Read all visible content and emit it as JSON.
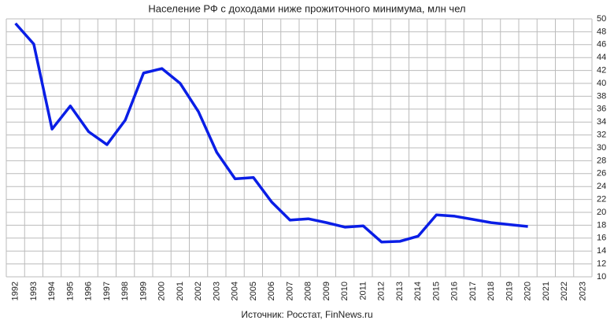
{
  "chart_data": {
    "type": "line",
    "title": "Население РФ с доходами ниже прожиточного минимума, млн чел",
    "source": "Источник: Росстат, FinNews.ru",
    "categories": [
      "1992",
      "1993",
      "1994",
      "1995",
      "1996",
      "1997",
      "1998",
      "1999",
      "2000",
      "2001",
      "2002",
      "2003",
      "2004",
      "2005",
      "2006",
      "2007",
      "2008",
      "2009",
      "2010",
      "2011",
      "2012",
      "2013",
      "2014",
      "2015",
      "2016",
      "2017",
      "2018",
      "2019",
      "2020",
      "2021",
      "2022",
      "2023"
    ],
    "series": [
      {
        "name": "Население с доходами ниже прожиточного минимума",
        "color": "#0a1ee6",
        "values": [
          49.3,
          46.1,
          32.9,
          36.5,
          32.5,
          30.5,
          34.3,
          41.6,
          42.3,
          40.0,
          35.6,
          29.3,
          25.2,
          25.4,
          21.6,
          18.8,
          19.0,
          18.4,
          17.7,
          17.9,
          15.4,
          15.5,
          16.3,
          19.6,
          19.4,
          18.9,
          18.4,
          18.1,
          17.8,
          null,
          null,
          null
        ]
      }
    ],
    "ylim": [
      10,
      50
    ],
    "yticks": [
      10,
      12,
      14,
      16,
      18,
      20,
      22,
      24,
      26,
      28,
      30,
      32,
      34,
      36,
      38,
      40,
      42,
      44,
      46,
      48,
      50
    ],
    "grid": true
  }
}
